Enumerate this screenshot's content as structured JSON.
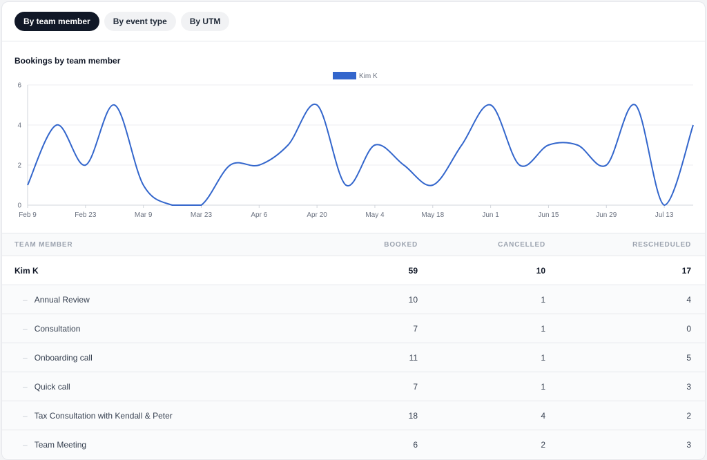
{
  "tabs": [
    {
      "label": "By team member",
      "active": true
    },
    {
      "label": "By event type",
      "active": false
    },
    {
      "label": "By UTM",
      "active": false
    }
  ],
  "chart_title": "Bookings by team member",
  "chart_data": {
    "type": "line",
    "title": "Bookings by team member",
    "x_ticks": [
      "Feb 9",
      "Feb 23",
      "Mar 9",
      "Mar 23",
      "Apr 6",
      "Apr 20",
      "May 4",
      "May 18",
      "Jun 1",
      "Jun 15",
      "Jun 29",
      "Jul 13"
    ],
    "y_ticks": [
      "0",
      "2",
      "4",
      "6"
    ],
    "ylim": [
      0,
      6
    ],
    "grid": true,
    "legend_position": "top",
    "x": [
      "Feb 9",
      "Feb 16",
      "Feb 23",
      "Mar 2",
      "Mar 9",
      "Mar 16",
      "Mar 23",
      "Mar 30",
      "Apr 6",
      "Apr 13",
      "Apr 20",
      "Apr 27",
      "May 4",
      "May 11",
      "May 18",
      "May 25",
      "Jun 1",
      "Jun 8",
      "Jun 15",
      "Jun 22",
      "Jun 29",
      "Jul 6",
      "Jul 13",
      "Jul 20"
    ],
    "series": [
      {
        "name": "Kim K",
        "color": "#3366cc",
        "values": [
          1,
          4,
          2,
          5,
          1,
          0,
          0,
          2,
          2,
          3,
          5,
          1,
          3,
          2,
          1,
          3,
          5,
          2,
          3,
          3,
          2,
          5,
          0,
          4
        ]
      }
    ]
  },
  "table": {
    "headers": [
      "Team Member",
      "Booked",
      "Cancelled",
      "Rescheduled"
    ],
    "parent": {
      "name": "Kim K",
      "booked": "59",
      "cancelled": "10",
      "rescheduled": "17"
    },
    "children": [
      {
        "name": "Annual Review",
        "booked": "10",
        "cancelled": "1",
        "rescheduled": "4"
      },
      {
        "name": "Consultation",
        "booked": "7",
        "cancelled": "1",
        "rescheduled": "0"
      },
      {
        "name": "Onboarding call",
        "booked": "11",
        "cancelled": "1",
        "rescheduled": "5"
      },
      {
        "name": "Quick call",
        "booked": "7",
        "cancelled": "1",
        "rescheduled": "3"
      },
      {
        "name": "Tax Consultation with Kendall & Peter",
        "booked": "18",
        "cancelled": "4",
        "rescheduled": "2"
      },
      {
        "name": "Team Meeting",
        "booked": "6",
        "cancelled": "2",
        "rescheduled": "3"
      }
    ],
    "child_marker": "–"
  }
}
